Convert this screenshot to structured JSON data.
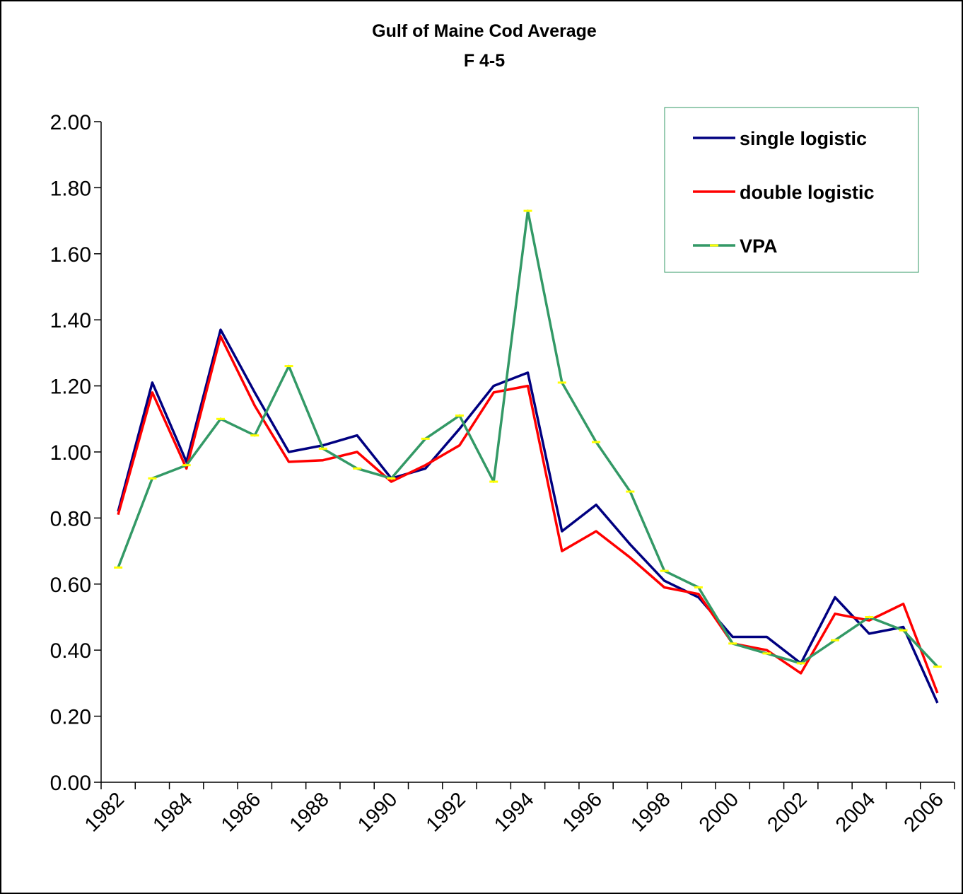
{
  "chart_data": {
    "type": "line",
    "title": "Gulf of Maine Cod Average",
    "subtitle": "F 4-5",
    "categories": [
      "1982",
      null,
      "1984",
      null,
      "1986",
      null,
      "1988",
      null,
      "1990",
      null,
      "1992",
      null,
      "1994",
      null,
      "1996",
      null,
      "1998",
      null,
      "2000",
      null,
      "2002",
      null,
      "2004",
      null,
      "2006"
    ],
    "series": [
      {
        "name": "single logistic",
        "color": "#000080",
        "values": [
          0.82,
          1.21,
          0.97,
          1.37,
          1.18,
          1.0,
          1.02,
          1.05,
          0.92,
          0.95,
          1.07,
          1.2,
          1.24,
          0.76,
          0.84,
          0.72,
          0.61,
          0.56,
          0.44,
          0.44,
          0.36,
          0.56,
          0.45,
          0.47,
          0.24
        ]
      },
      {
        "name": "double logistic",
        "color": "#ff0000",
        "values": [
          0.81,
          1.18,
          0.95,
          1.35,
          1.14,
          0.97,
          0.975,
          1.0,
          0.91,
          0.96,
          1.02,
          1.18,
          1.2,
          0.7,
          0.76,
          0.68,
          0.59,
          0.57,
          0.42,
          0.4,
          0.33,
          0.51,
          0.49,
          0.54,
          0.27
        ]
      },
      {
        "name": "VPA",
        "color": "#339966",
        "marker_color": "#ffff00",
        "values": [
          0.65,
          0.92,
          0.96,
          1.1,
          1.05,
          1.26,
          1.01,
          0.95,
          0.92,
          1.04,
          1.11,
          0.91,
          1.73,
          1.21,
          1.03,
          0.88,
          0.64,
          0.59,
          0.42,
          0.39,
          0.36,
          0.43,
          0.5,
          0.46,
          0.35
        ]
      }
    ],
    "ylim": [
      0,
      2
    ],
    "yticks": [
      {
        "value": 0,
        "label": "0.00"
      },
      {
        "value": 0.2,
        "label": "0.20"
      },
      {
        "value": 0.4,
        "label": "0.40"
      },
      {
        "value": 0.6,
        "label": "0.60"
      },
      {
        "value": 0.8,
        "label": "0.80"
      },
      {
        "value": 1,
        "label": "1.00"
      },
      {
        "value": 1.2,
        "label": "1.20"
      },
      {
        "value": 1.4,
        "label": "1.40"
      },
      {
        "value": 1.6,
        "label": "1.60"
      },
      {
        "value": 1.8,
        "label": "1.80"
      },
      {
        "value": 2,
        "label": "2.00"
      }
    ],
    "grid": false,
    "legend": "top-right"
  }
}
